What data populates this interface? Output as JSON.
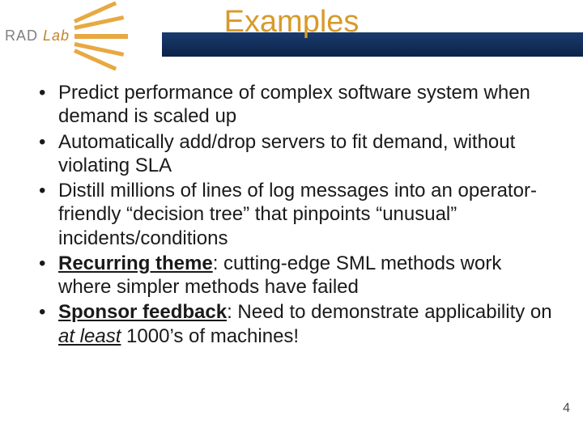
{
  "logo": {
    "text_plain": "RAD ",
    "text_accent": "Lab",
    "ray_color": "#e8a842"
  },
  "header": {
    "band_gradient_top": "#1a3a6e",
    "band_gradient_bottom": "#0d2348"
  },
  "title": {
    "text": "Examples",
    "color": "#d89a2b",
    "fontsize": 38
  },
  "bullets": [
    {
      "runs": [
        {
          "t": "Predict performance of complex software system when demand is scaled up"
        }
      ]
    },
    {
      "runs": [
        {
          "t": "Automatically add/drop servers to fit demand, without violating SLA"
        }
      ]
    },
    {
      "runs": [
        {
          "t": "Distill millions of lines of log messages into an operator-friendly “decision tree” that pinpoints “unusual” incidents/conditions"
        }
      ]
    },
    {
      "runs": [
        {
          "t": "Recurring theme",
          "b": true,
          "u": true
        },
        {
          "t": ": cutting-edge SML methods work where simpler methods have failed"
        }
      ]
    },
    {
      "runs": [
        {
          "t": "Sponsor feedback",
          "b": true,
          "u": true
        },
        {
          "t": ": Need to demonstrate applicability on "
        },
        {
          "t": "at least",
          "i": true,
          "u": true
        },
        {
          "t": " 1000’s of machines!"
        }
      ]
    }
  ],
  "page_number": "4",
  "body_fontsize": 24,
  "body_color": "#1a1a1a"
}
